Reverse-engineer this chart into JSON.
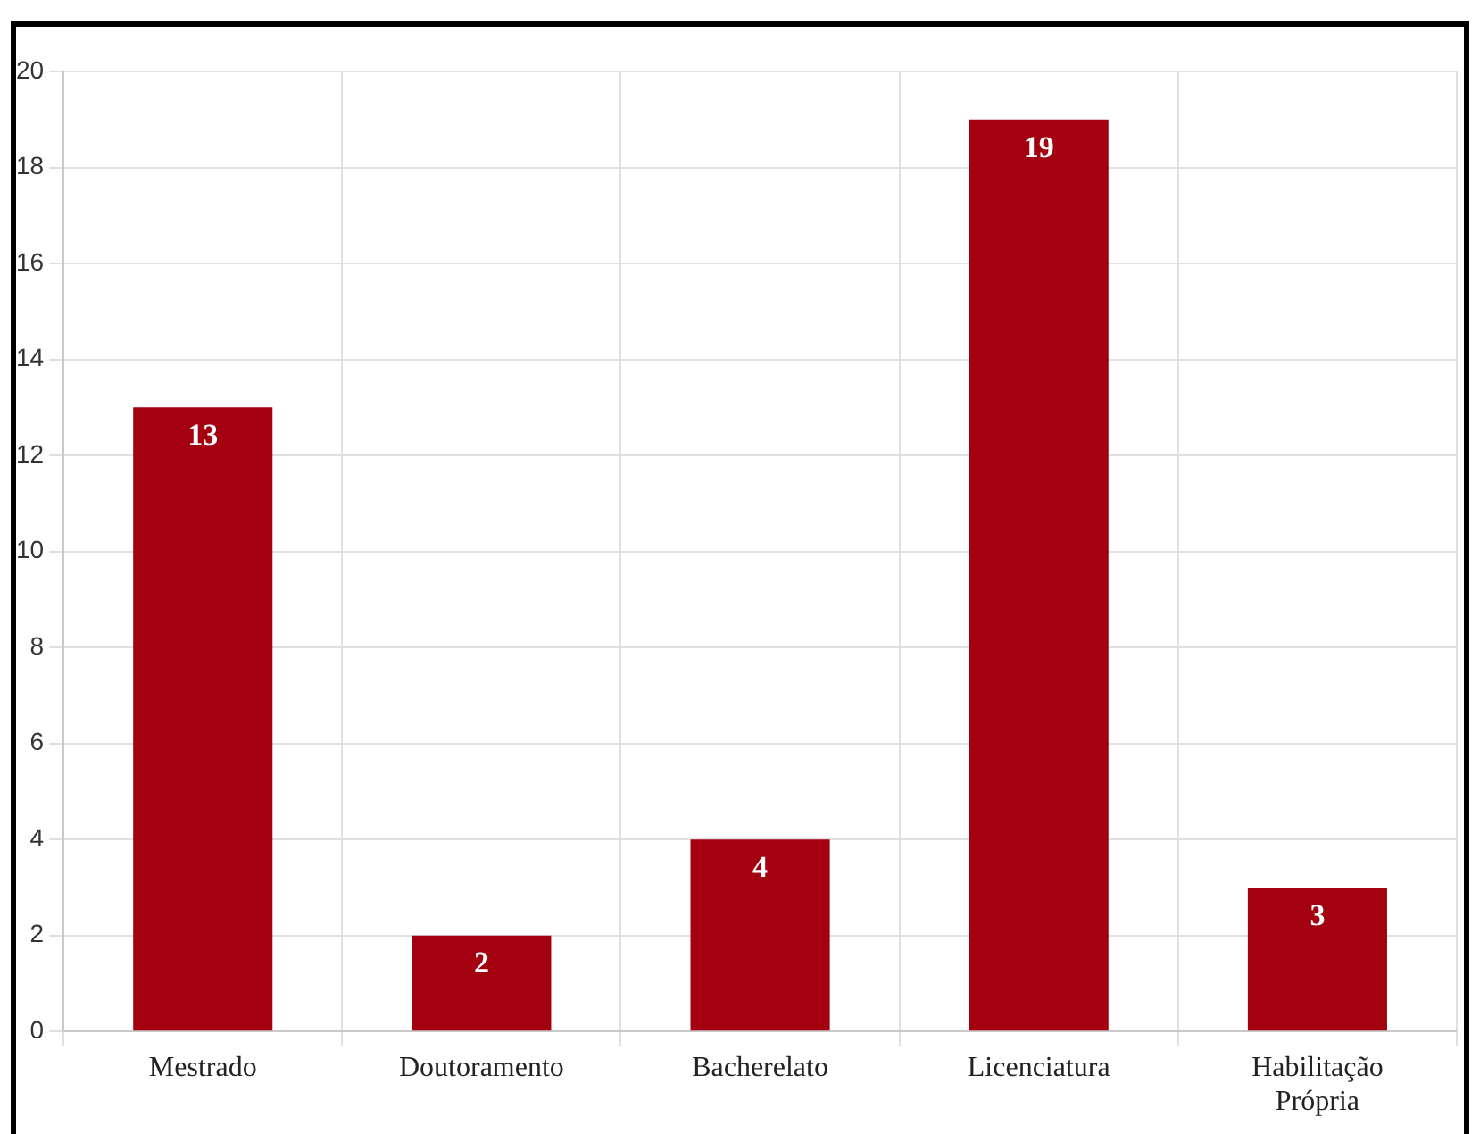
{
  "chart_data": {
    "type": "bar",
    "categories": [
      "Mestrado",
      "Doutoramento",
      "Bacherelato",
      "Licenciatura",
      "Habilitação Própria"
    ],
    "values": [
      13,
      2,
      4,
      19,
      3
    ],
    "color": "#a30010",
    "ylim": [
      0,
      20
    ],
    "yticks": [
      0,
      2,
      4,
      6,
      8,
      10,
      12,
      14,
      16,
      18,
      20
    ],
    "grid": true,
    "data_labels": true,
    "legend": false
  }
}
